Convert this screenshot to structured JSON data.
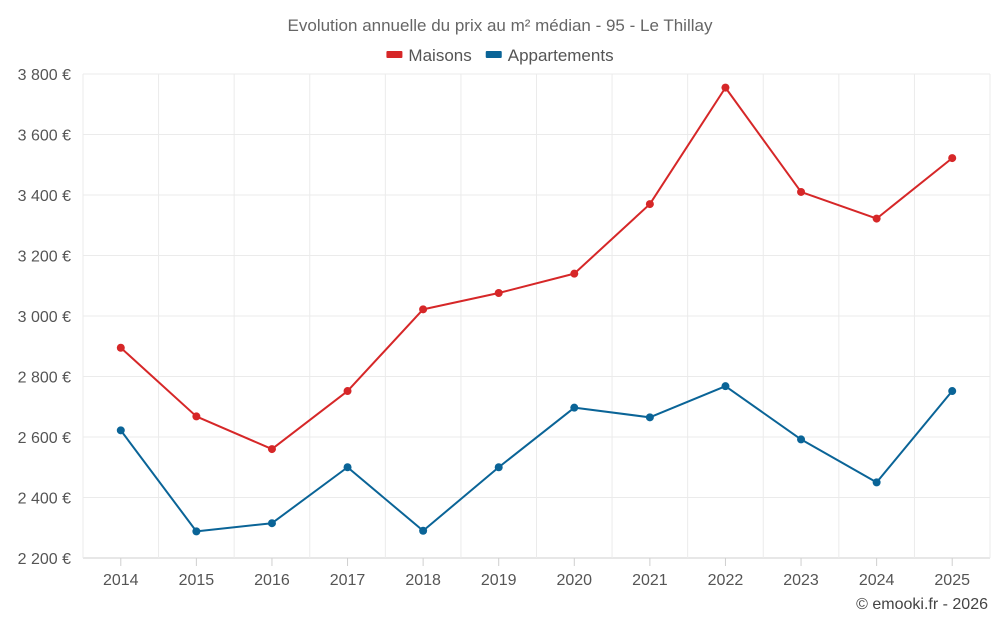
{
  "chart_data": {
    "type": "line",
    "title": "Evolution annuelle du prix au m² médian - 95 - Le Thillay",
    "categories": [
      "2014",
      "2015",
      "2016",
      "2017",
      "2018",
      "2019",
      "2020",
      "2021",
      "2022",
      "2023",
      "2024",
      "2025"
    ],
    "series": [
      {
        "name": "Maisons",
        "color": "#d62728",
        "values": [
          2895,
          2668,
          2560,
          2752,
          3022,
          3076,
          3140,
          3370,
          3755,
          3410,
          3322,
          3522
        ]
      },
      {
        "name": "Appartements",
        "color": "#0a6497",
        "values": [
          2622,
          2288,
          2315,
          2500,
          2290,
          2500,
          2697,
          2665,
          2768,
          2592,
          2450,
          2752
        ]
      }
    ],
    "yticks": [
      "2 200 €",
      "2 400 €",
      "2 600 €",
      "2 800 €",
      "3 000 €",
      "3 200 €",
      "3 400 €",
      "3 600 €",
      "3 800 €"
    ],
    "ytick_values": [
      2200,
      2400,
      2600,
      2800,
      3000,
      3200,
      3400,
      3600,
      3800
    ],
    "ylim": [
      2200,
      3800
    ],
    "xlabel": "",
    "ylabel": "",
    "grid": true,
    "legend_position": "top-center"
  },
  "credit": "© emooki.fr - 2026"
}
